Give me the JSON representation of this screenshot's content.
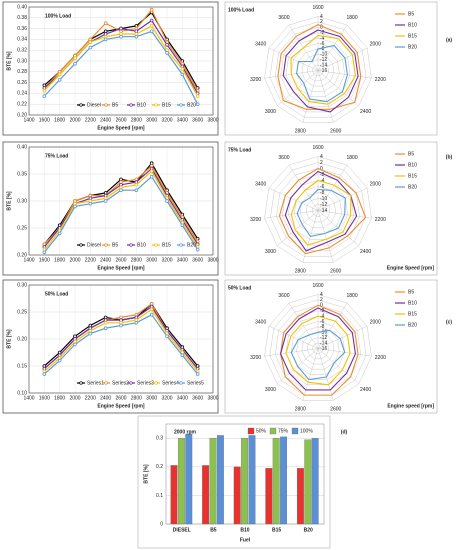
{
  "chart_data": [
    {
      "type": "line",
      "title": "100% Load",
      "title_color": "#e8201b",
      "panel_label": "(a)",
      "xlabel": "Engine Speed [rpm]",
      "ylabel": "BTE [%]",
      "x": [
        1600,
        1800,
        2000,
        2200,
        2400,
        2600,
        2800,
        3000,
        3200,
        3400,
        3600
      ],
      "xlim": [
        1400,
        3800
      ],
      "xticks": [
        1400,
        1600,
        1800,
        2000,
        2200,
        2400,
        2600,
        2800,
        3000,
        3200,
        3400,
        3600,
        3800
      ],
      "ylim": [
        0.2,
        0.4
      ],
      "yticks": [
        {
          "value": 0.2,
          "label": "0.20"
        },
        0.22,
        0.24,
        0.26,
        0.28,
        {
          "value": 0.3,
          "label": "0.30"
        },
        0.32,
        0.34,
        0.36,
        0.38,
        {
          "value": 0.4,
          "label": "0.40"
        }
      ],
      "grid": true,
      "series": [
        {
          "name": "Diesel",
          "color": "#000000",
          "values": [
            0.255,
            0.28,
            0.31,
            0.34,
            0.355,
            0.36,
            0.365,
            0.39,
            0.34,
            0.3,
            0.25
          ]
        },
        {
          "name": "B5",
          "color": "#f08a2c",
          "values": [
            0.25,
            0.28,
            0.31,
            0.34,
            0.37,
            0.355,
            0.36,
            0.395,
            0.335,
            0.295,
            0.245
          ]
        },
        {
          "name": "B10",
          "color": "#7030a0",
          "values": [
            0.25,
            0.275,
            0.305,
            0.335,
            0.35,
            0.36,
            0.355,
            0.375,
            0.33,
            0.29,
            0.24
          ]
        },
        {
          "name": "B15",
          "color": "#f5c000",
          "values": [
            0.245,
            0.275,
            0.305,
            0.335,
            0.345,
            0.35,
            0.35,
            0.365,
            0.32,
            0.285,
            0.235
          ]
        },
        {
          "name": "B20",
          "color": "#5b9bd5",
          "values": [
            0.235,
            0.265,
            0.295,
            0.325,
            0.34,
            0.345,
            0.345,
            0.355,
            0.315,
            0.275,
            0.22
          ]
        }
      ]
    },
    {
      "type": "radar",
      "title": "100% Load",
      "title_color": "#e8201b",
      "categories": [
        1600,
        1800,
        2000,
        2200,
        2400,
        2600,
        2800,
        3000,
        3200,
        3400,
        3600
      ],
      "rlim": [
        -16,
        4
      ],
      "rticks": [
        4,
        2,
        0,
        -2,
        -4,
        -6,
        -8,
        -10,
        -12,
        -14,
        -16
      ],
      "series": [
        {
          "name": "B5",
          "color": "#f08a2c",
          "values": [
            1,
            0,
            0,
            0,
            2,
            -1,
            -1,
            1,
            -1,
            -1,
            -1
          ]
        },
        {
          "name": "B10",
          "color": "#7030a0",
          "values": [
            -1,
            -1,
            -1,
            -1,
            -1,
            0,
            -2,
            -4,
            -3,
            -3,
            -3
          ]
        },
        {
          "name": "B15",
          "color": "#f5c000",
          "values": [
            -3,
            -2,
            -2,
            -2,
            -3,
            -3,
            -4,
            -6,
            -6,
            -5,
            -6
          ]
        },
        {
          "name": "B20",
          "color": "#5b9bd5",
          "values": [
            -8,
            -5,
            -5,
            -5,
            -4,
            -4,
            -5,
            -9,
            -8,
            -8,
            -12
          ]
        }
      ]
    },
    {
      "type": "line",
      "title": "75% Load",
      "title_color": "#3f8f1f",
      "panel_label": "(b)",
      "xlabel": "Engine Speed [rpm]",
      "ylabel": "BTE [%]",
      "x": [
        1600,
        1800,
        2000,
        2200,
        2400,
        2600,
        2800,
        3000,
        3200,
        3400,
        3600
      ],
      "xlim": [
        1400,
        3800
      ],
      "xticks": [
        1400,
        1600,
        1800,
        2000,
        2200,
        2400,
        2600,
        2800,
        3000,
        3200,
        3400,
        3600,
        3800
      ],
      "ylim": [
        0.2,
        0.4
      ],
      "yticks": [
        {
          "value": 0.2,
          "label": "0.20"
        },
        0.25,
        {
          "value": 0.3,
          "label": "0.30"
        },
        0.35,
        {
          "value": 0.4,
          "label": "0.40"
        }
      ],
      "grid": true,
      "series": [
        {
          "name": "Diesel",
          "color": "#000000",
          "values": [
            0.22,
            0.255,
            0.3,
            0.31,
            0.315,
            0.34,
            0.335,
            0.37,
            0.32,
            0.275,
            0.23
          ]
        },
        {
          "name": "B5",
          "color": "#f08a2c",
          "values": [
            0.22,
            0.25,
            0.3,
            0.31,
            0.31,
            0.335,
            0.34,
            0.365,
            0.315,
            0.27,
            0.225
          ]
        },
        {
          "name": "B10",
          "color": "#7030a0",
          "values": [
            0.215,
            0.25,
            0.295,
            0.305,
            0.31,
            0.33,
            0.335,
            0.36,
            0.31,
            0.265,
            0.22
          ]
        },
        {
          "name": "B15",
          "color": "#f5c000",
          "values": [
            0.21,
            0.245,
            0.295,
            0.3,
            0.305,
            0.325,
            0.33,
            0.355,
            0.305,
            0.26,
            0.215
          ]
        },
        {
          "name": "B20",
          "color": "#5b9bd5",
          "values": [
            0.205,
            0.24,
            0.29,
            0.295,
            0.3,
            0.32,
            0.32,
            0.345,
            0.3,
            0.255,
            0.21
          ]
        }
      ]
    },
    {
      "type": "radar",
      "title": "75% Load",
      "title_color": "#3f8f1f",
      "axis_title": "Engine Speed [rpm]",
      "categories": [
        1600,
        1800,
        2000,
        2200,
        2400,
        2600,
        2800,
        3000,
        3200,
        3400,
        3600
      ],
      "rlim": [
        -14,
        4
      ],
      "rticks": [
        4,
        2,
        0,
        -2,
        -4,
        -6,
        -8,
        -10,
        -12,
        -14
      ],
      "series": [
        {
          "name": "B5",
          "color": "#f08a2c",
          "values": [
            0,
            -1,
            0,
            2,
            -1,
            -1,
            1,
            -1,
            -1,
            -2,
            -2
          ]
        },
        {
          "name": "B10",
          "color": "#7030a0",
          "values": [
            -1,
            -2,
            -2,
            -1,
            -2,
            -3,
            0,
            -3,
            -3,
            -4,
            -4
          ]
        },
        {
          "name": "B15",
          "color": "#f5c000",
          "values": [
            -4,
            -4,
            -2,
            -3,
            -3,
            -4,
            -2,
            -4,
            -5,
            -6,
            -6
          ]
        },
        {
          "name": "B20",
          "color": "#5b9bd5",
          "values": [
            -7,
            -6,
            -4,
            -5,
            -5,
            -6,
            -5,
            -7,
            -7,
            -8,
            -9
          ]
        }
      ]
    },
    {
      "type": "line",
      "title": "50% Load",
      "title_color": "#2f6fd0",
      "panel_label": "(c)",
      "xlabel": "Engine Speed [rpm]",
      "ylabel": "BTE [%]",
      "x": [
        1600,
        1800,
        2000,
        2200,
        2400,
        2600,
        2800,
        3000,
        3200,
        3400,
        3600
      ],
      "xlim": [
        1400,
        3800
      ],
      "xticks": [
        1400,
        1600,
        1800,
        2000,
        2200,
        2400,
        2600,
        2800,
        3000,
        3200,
        3400,
        3600,
        3800
      ],
      "ylim": [
        0.1,
        0.3
      ],
      "yticks": [
        {
          "value": 0.1,
          "label": "0.10"
        },
        0.15,
        {
          "value": 0.2,
          "label": "0.20"
        },
        0.25,
        {
          "value": 0.3,
          "label": "0.30"
        }
      ],
      "grid": true,
      "series": [
        {
          "name": "Series1",
          "color": "#000000",
          "values": [
            0.15,
            0.175,
            0.205,
            0.225,
            0.24,
            0.235,
            0.24,
            0.265,
            0.22,
            0.185,
            0.15
          ]
        },
        {
          "name": "Series2",
          "color": "#f08a2c",
          "values": [
            0.145,
            0.17,
            0.2,
            0.22,
            0.235,
            0.24,
            0.245,
            0.265,
            0.215,
            0.18,
            0.145
          ]
        },
        {
          "name": "Series3",
          "color": "#7030a0",
          "values": [
            0.145,
            0.17,
            0.2,
            0.22,
            0.235,
            0.235,
            0.24,
            0.26,
            0.215,
            0.18,
            0.145
          ]
        },
        {
          "name": "Series4",
          "color": "#f5c000",
          "values": [
            0.14,
            0.165,
            0.195,
            0.215,
            0.23,
            0.23,
            0.235,
            0.255,
            0.21,
            0.175,
            0.14
          ]
        },
        {
          "name": "Series5",
          "color": "#5b9bd5",
          "values": [
            0.135,
            0.16,
            0.19,
            0.21,
            0.22,
            0.225,
            0.23,
            0.245,
            0.205,
            0.17,
            0.135
          ]
        }
      ]
    },
    {
      "type": "radar",
      "title": "50% Load",
      "title_color": "#2f6fd0",
      "axis_title": "Engine speed [rpm]",
      "categories": [
        1600,
        1800,
        2000,
        2200,
        2400,
        2600,
        2800,
        3000,
        3200,
        3400,
        3600
      ],
      "rlim": [
        -16,
        4
      ],
      "rticks": [
        4,
        2,
        0,
        -2,
        -4,
        -6,
        -8,
        -10,
        -12,
        -14,
        -16
      ],
      "series": [
        {
          "name": "B5",
          "color": "#f08a2c",
          "values": [
            0,
            -1,
            -1,
            -1,
            0,
            2,
            2,
            0,
            -2,
            -2,
            -2
          ]
        },
        {
          "name": "B10",
          "color": "#7030a0",
          "values": [
            -1,
            -2,
            -2,
            -2,
            -2,
            0,
            0,
            -2,
            -2,
            -3,
            -3
          ]
        },
        {
          "name": "B15",
          "color": "#f5c000",
          "values": [
            -4,
            -4,
            -4,
            -4,
            -4,
            -2,
            -3,
            -4,
            -4,
            -5,
            -5
          ]
        },
        {
          "name": "B20",
          "color": "#5b9bd5",
          "values": [
            -10,
            -8,
            -7,
            -6,
            -8,
            -5,
            -4,
            -6,
            -6,
            -8,
            -10
          ]
        }
      ]
    },
    {
      "type": "bar",
      "title": "2000 rpm",
      "title_color": "#e8201b",
      "panel_label": "(d)",
      "xlabel": "Fuel",
      "ylabel": "BTE [%]",
      "categories": [
        "DIESEL",
        "B5",
        "B10",
        "B15",
        "B20"
      ],
      "ylim": [
        0,
        0.35
      ],
      "yticks": [
        0,
        0.1,
        0.2,
        0.3
      ],
      "grid": true,
      "series": [
        {
          "name": "50%",
          "color": "#e8322f",
          "values": [
            0.205,
            0.205,
            0.2,
            0.195,
            0.195
          ]
        },
        {
          "name": "75%",
          "color": "#8cc152",
          "values": [
            0.3,
            0.3,
            0.3,
            0.3,
            0.295
          ]
        },
        {
          "name": "100%",
          "color": "#5b8fd6",
          "values": [
            0.315,
            0.31,
            0.31,
            0.305,
            0.3
          ]
        }
      ]
    }
  ]
}
